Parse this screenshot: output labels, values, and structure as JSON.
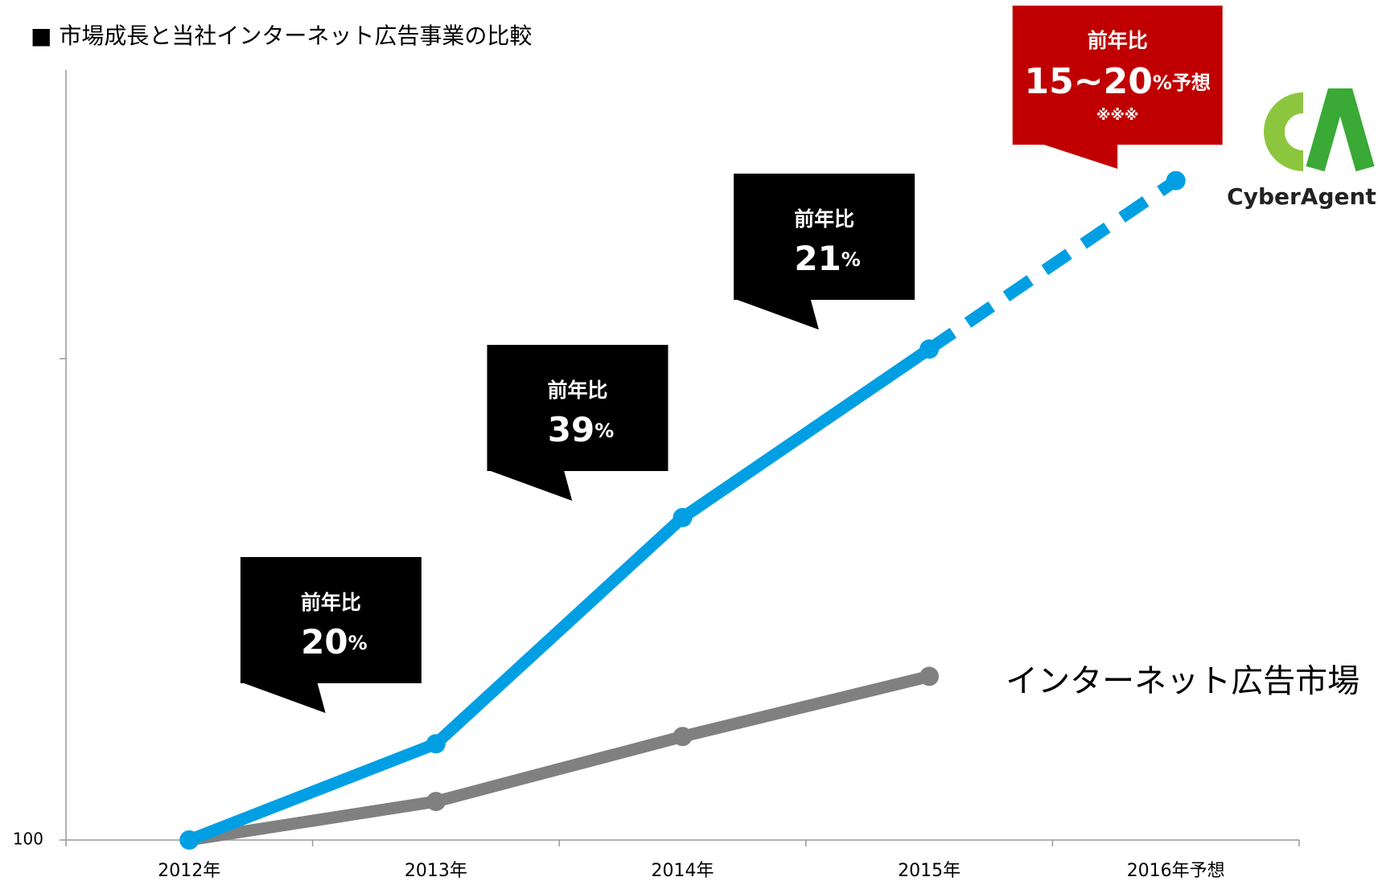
{
  "chart_data": {
    "type": "line",
    "title": "■ 市場成長と当社インターネット広告事業の比較",
    "categories": [
      "2012年",
      "2013年",
      "2014年",
      "2015年",
      "2016年予想"
    ],
    "series": [
      {
        "name": "CyberAgent",
        "color": "#009fe3",
        "values": [
          100,
          120,
          167,
          202,
          237
        ],
        "dashed_from": 3
      },
      {
        "name": "インターネット広告市場",
        "color": "#808080",
        "values": [
          100,
          108,
          121.5,
          134,
          null
        ]
      }
    ],
    "ylim": [
      100,
      260
    ],
    "yticks": [
      100,
      {
        "value": 200,
        "label": null
      }
    ],
    "annotations": [
      {
        "index": 1,
        "heading": "前年比",
        "text": "20",
        "suffix": "%",
        "color": "#000000"
      },
      {
        "index": 2,
        "heading": "前年比",
        "text": "39",
        "suffix": "%",
        "color": "#000000"
      },
      {
        "index": 3,
        "heading": "前年比",
        "text": "21",
        "suffix": "%",
        "color": "#000000"
      },
      {
        "index": 4,
        "heading": "前年比",
        "text": "15~20",
        "suffix": "%予想",
        "note": "※※※",
        "color": "#c00000"
      }
    ]
  }
}
